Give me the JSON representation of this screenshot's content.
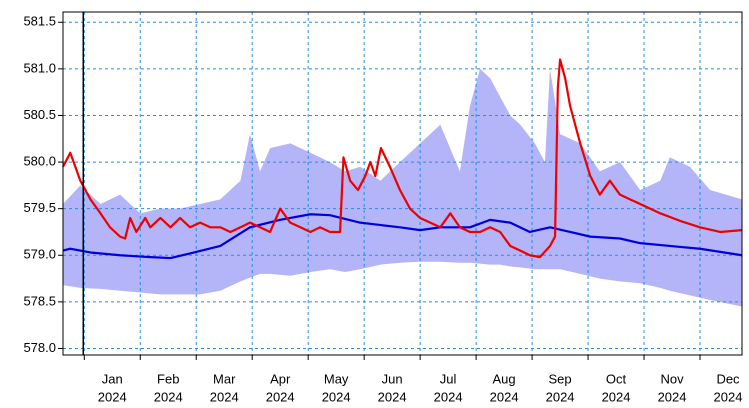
{
  "chart_data": {
    "type": "line",
    "xlim": [
      -0.38,
      11.75
    ],
    "ylim": [
      577.93,
      581.61
    ],
    "yticks": [
      {
        "value": 578.0,
        "label": "578.0"
      },
      {
        "value": 578.5,
        "label": "578.5"
      },
      {
        "value": 579.0,
        "label": "579.0"
      },
      {
        "value": 579.5,
        "label": "579.5"
      },
      {
        "value": 580.0,
        "label": "580.0"
      },
      {
        "value": 580.5,
        "label": "580.5"
      },
      {
        "value": 581.0,
        "label": "581.0"
      },
      {
        "value": 581.5,
        "label": "581.5"
      }
    ],
    "xgrid": [
      0,
      1,
      2,
      3,
      4,
      5,
      6,
      7,
      8,
      9,
      10,
      11
    ],
    "marker_x": 0,
    "xticks": [
      {
        "value": 0.5,
        "label": "Jan",
        "sublabel": "2024"
      },
      {
        "value": 1.5,
        "label": "Feb",
        "sublabel": "2024"
      },
      {
        "value": 2.5,
        "label": "Mar",
        "sublabel": "2024"
      },
      {
        "value": 3.5,
        "label": "Apr",
        "sublabel": "2024"
      },
      {
        "value": 4.5,
        "label": "May",
        "sublabel": "2024"
      },
      {
        "value": 5.5,
        "label": "Jun",
        "sublabel": "2024"
      },
      {
        "value": 6.5,
        "label": "Jul",
        "sublabel": "2024"
      },
      {
        "value": 7.5,
        "label": "Aug",
        "sublabel": "2024"
      },
      {
        "value": 8.5,
        "label": "Sep",
        "sublabel": "2024"
      },
      {
        "value": 9.5,
        "label": "Oct",
        "sublabel": "2024"
      },
      {
        "value": 10.5,
        "label": "Nov",
        "sublabel": "2024"
      },
      {
        "value": 11.5,
        "label": "Dec",
        "sublabel": "2024"
      }
    ],
    "grid": true,
    "band": {
      "color": "#b4b4f8",
      "x": [
        -0.38,
        -0.07,
        0.29,
        0.64,
        1.0,
        1.36,
        1.71,
        2.07,
        2.43,
        2.79,
        2.96,
        3.14,
        3.32,
        3.68,
        4.04,
        4.39,
        4.66,
        4.93,
        5.29,
        5.64,
        6.0,
        6.36,
        6.71,
        6.89,
        7.07,
        7.25,
        7.43,
        7.61,
        7.79,
        8.05,
        8.23,
        8.32,
        8.5,
        8.86,
        9.21,
        9.57,
        9.93,
        10.29,
        10.46,
        10.82,
        11.18,
        11.75
      ],
      "upper": [
        579.55,
        579.75,
        579.55,
        579.65,
        579.45,
        579.5,
        579.5,
        579.55,
        579.6,
        579.8,
        580.3,
        579.9,
        580.15,
        580.2,
        580.1,
        580.0,
        579.9,
        579.95,
        579.8,
        580.0,
        580.2,
        580.4,
        579.9,
        580.6,
        581.0,
        580.9,
        580.7,
        580.5,
        580.4,
        580.2,
        580.0,
        581.0,
        580.3,
        580.2,
        579.9,
        580.0,
        579.7,
        579.8,
        580.05,
        579.95,
        579.7,
        579.6
      ],
      "lower": [
        578.68,
        578.65,
        578.64,
        578.62,
        578.6,
        578.58,
        578.58,
        578.58,
        578.62,
        578.72,
        578.76,
        578.8,
        578.8,
        578.78,
        578.82,
        578.85,
        578.82,
        578.85,
        578.9,
        578.92,
        578.93,
        578.93,
        578.92,
        578.92,
        578.91,
        578.9,
        578.9,
        578.88,
        578.87,
        578.85,
        578.85,
        578.85,
        578.85,
        578.8,
        578.75,
        578.72,
        578.7,
        578.65,
        578.62,
        578.57,
        578.52,
        578.45
      ]
    },
    "series": [
      {
        "color": "#0000dd",
        "x": [
          -0.38,
          -0.25,
          0.11,
          0.64,
          1.18,
          1.54,
          1.89,
          2.43,
          2.96,
          3.5,
          4.04,
          4.39,
          4.93,
          5.64,
          6.0,
          6.36,
          6.89,
          7.25,
          7.61,
          7.96,
          8.32,
          8.68,
          9.04,
          9.57,
          9.93,
          10.46,
          11.0,
          11.75
        ],
        "values": [
          579.05,
          579.07,
          579.03,
          579.0,
          578.98,
          578.97,
          579.02,
          579.1,
          579.3,
          579.38,
          579.44,
          579.43,
          579.35,
          579.3,
          579.27,
          579.3,
          579.3,
          579.38,
          579.35,
          579.25,
          579.3,
          579.25,
          579.2,
          579.18,
          579.13,
          579.1,
          579.07,
          579.0
        ]
      },
      {
        "color": "#ee0000",
        "x": [
          -0.38,
          -0.25,
          -0.07,
          0.11,
          0.29,
          0.46,
          0.64,
          0.73,
          0.82,
          0.93,
          1.09,
          1.18,
          1.36,
          1.54,
          1.71,
          1.89,
          2.07,
          2.25,
          2.43,
          2.61,
          2.79,
          2.96,
          3.14,
          3.32,
          3.5,
          3.68,
          3.86,
          4.04,
          4.21,
          4.39,
          4.57,
          4.63,
          4.75,
          4.89,
          5.02,
          5.11,
          5.2,
          5.3,
          5.46,
          5.64,
          5.82,
          6.0,
          6.18,
          6.36,
          6.54,
          6.71,
          6.89,
          7.07,
          7.25,
          7.43,
          7.61,
          7.79,
          7.96,
          8.14,
          8.32,
          8.41,
          8.46,
          8.5,
          8.59,
          8.68,
          8.86,
          9.04,
          9.21,
          9.39,
          9.57,
          9.75,
          9.93,
          10.29,
          10.64,
          11.0,
          11.36,
          11.75
        ],
        "values": [
          579.95,
          580.1,
          579.8,
          579.6,
          579.45,
          579.3,
          579.2,
          579.18,
          579.4,
          579.25,
          579.4,
          579.3,
          579.4,
          579.3,
          579.4,
          579.3,
          579.35,
          579.3,
          579.3,
          579.25,
          579.3,
          579.35,
          579.3,
          579.25,
          579.5,
          579.35,
          579.3,
          579.25,
          579.3,
          579.25,
          579.25,
          580.05,
          579.8,
          579.7,
          579.85,
          580.0,
          579.85,
          580.15,
          579.95,
          579.7,
          579.5,
          579.4,
          579.35,
          579.3,
          579.45,
          579.3,
          579.25,
          579.25,
          579.3,
          579.25,
          579.1,
          579.05,
          579.0,
          578.98,
          579.1,
          579.2,
          580.8,
          581.1,
          580.9,
          580.6,
          580.2,
          579.85,
          579.65,
          579.8,
          579.65,
          579.6,
          579.55,
          579.45,
          579.37,
          579.3,
          579.25,
          579.27
        ]
      }
    ]
  }
}
